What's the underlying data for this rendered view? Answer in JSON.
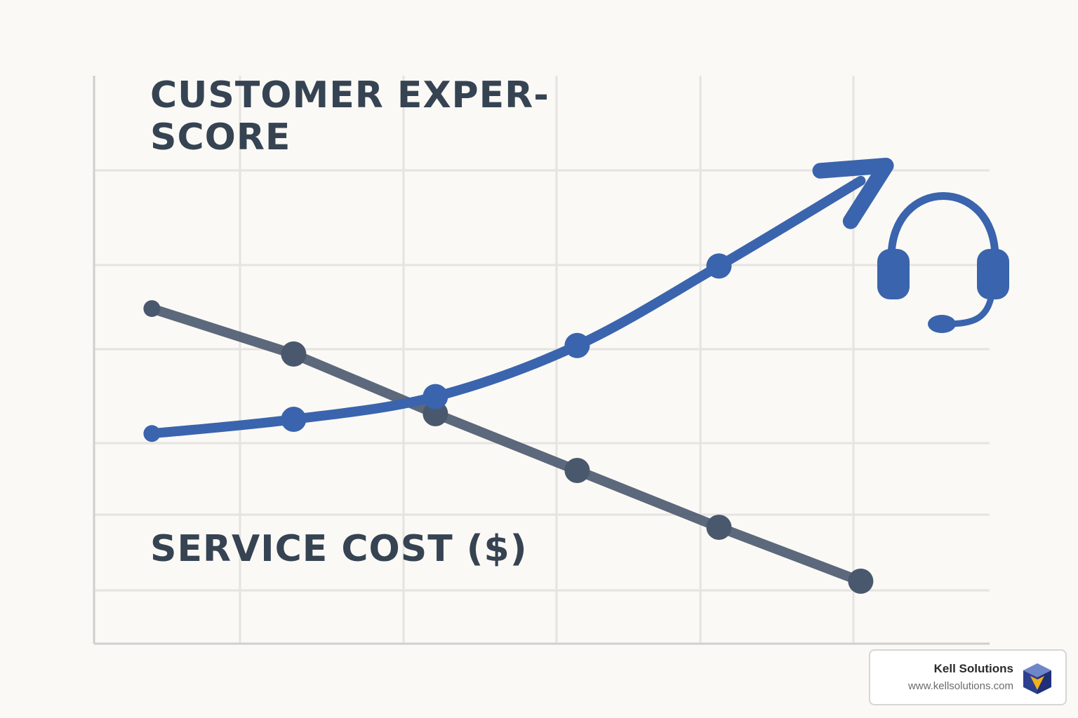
{
  "chart_data": {
    "type": "line",
    "x": [
      0,
      1,
      2,
      3,
      4,
      5
    ],
    "xlim": [
      -0.2,
      5.8
    ],
    "ylim": [
      0,
      100
    ],
    "grid": true,
    "series": [
      {
        "name": "CUSTOMER EXPER- SCORE",
        "name_lines": [
          "CUSTOMER EXPER-",
          "SCORE"
        ],
        "color": "#3a64ad",
        "x": [
          0,
          1,
          2,
          3,
          4,
          5
        ],
        "values": [
          37,
          39.5,
          43.5,
          52.5,
          66.5,
          81.5
        ],
        "ends_with_arrow": true
      },
      {
        "name": "SERVICE COST ($)",
        "name_lines": [
          "SERVICE COST ($)"
        ],
        "color": "#4a586e",
        "x": [
          0,
          1,
          2,
          3,
          4,
          5
        ],
        "values": [
          59,
          51,
          40.5,
          30.5,
          20.5,
          11
        ],
        "ends_with_arrow": false
      }
    ]
  },
  "decor": {
    "icon": "headset-icon",
    "icon_color": "#3a64ad"
  },
  "badge": {
    "name": "Kell Solutions",
    "url": "www.kellsolutions.com",
    "logo": "cube-logo-icon"
  }
}
